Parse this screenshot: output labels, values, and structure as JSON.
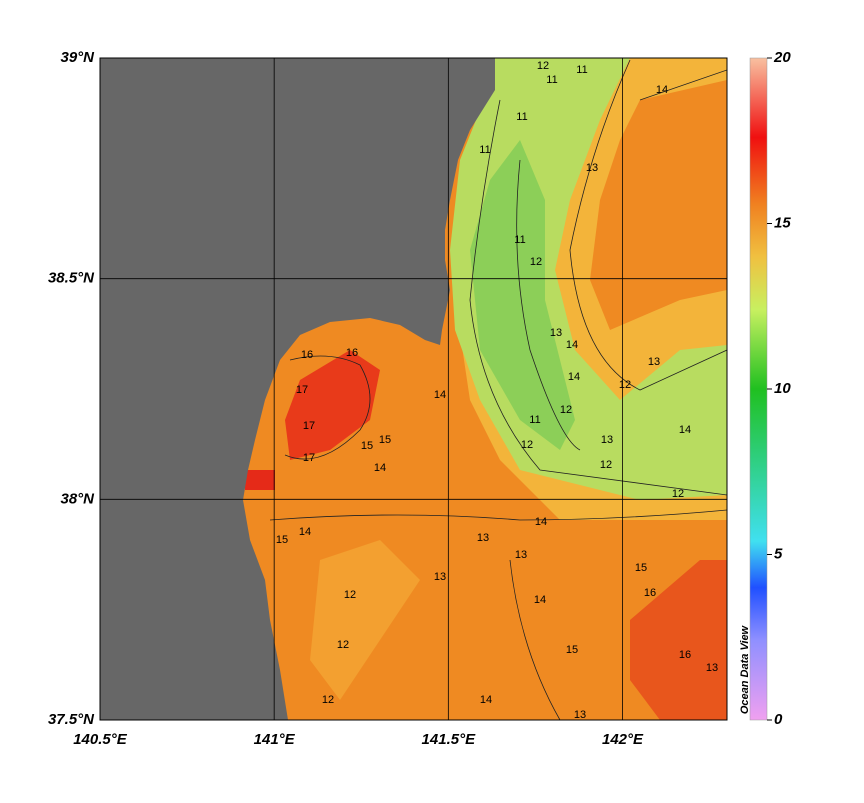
{
  "map": {
    "xlim": [
      140.5,
      142.3
    ],
    "ylim": [
      37.5,
      39
    ],
    "xticks": [
      {
        "value": 140.5,
        "label": "140.5°E"
      },
      {
        "value": 141,
        "label": "141°E"
      },
      {
        "value": 141.5,
        "label": "141.5°E"
      },
      {
        "value": 142,
        "label": "142°E"
      }
    ],
    "yticks": [
      {
        "value": 37.5,
        "label": "37.5°N"
      },
      {
        "value": 38,
        "label": "38°N"
      },
      {
        "value": 38.5,
        "label": "38.5°N"
      },
      {
        "value": 39,
        "label": "39°N"
      }
    ],
    "colorbar": {
      "range": [
        0,
        20
      ],
      "ticks": [
        0,
        5,
        10,
        15,
        20
      ]
    },
    "watermark": "Ocean Data View",
    "contour_labels": [
      "12",
      "11",
      "11",
      "14",
      "11",
      "11",
      "13",
      "11",
      "12",
      "13",
      "14",
      "12",
      "13",
      "14",
      "12",
      "11",
      "12",
      "13",
      "12",
      "16",
      "16",
      "17",
      "17",
      "17",
      "15",
      "15",
      "14",
      "14",
      "15",
      "14",
      "13",
      "13",
      "14",
      "12",
      "12",
      "13",
      "14",
      "14",
      "15",
      "15",
      "16",
      "16",
      "13",
      "12",
      "13",
      "14",
      "12"
    ]
  }
}
